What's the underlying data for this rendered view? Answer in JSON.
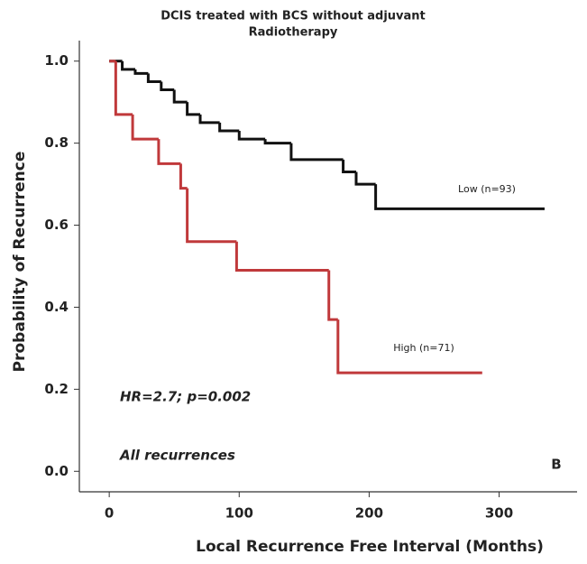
{
  "chart_data": {
    "type": "step",
    "title": [
      "DCIS treated with BCS without adjuvant",
      "Radiotherapy"
    ],
    "x_label": "Local Recurrence Free Interval (Months)",
    "y_label": "Probability of Recurrence",
    "xlim": [
      -23,
      360
    ],
    "xticks": [
      0,
      100,
      200,
      300
    ],
    "ylim": [
      -0.05,
      1.05
    ],
    "yticks": [
      {
        "value": 0,
        "label": "0.0"
      },
      0.2,
      0.4,
      0.6,
      0.8,
      {
        "value": 1,
        "label": "1.0"
      }
    ],
    "series": [
      {
        "name": "Low (n=93)",
        "color": "#111111",
        "x": [
          0,
          10,
          20,
          30,
          40,
          50,
          60,
          70,
          85,
          100,
          120,
          140,
          180,
          190,
          205,
          335
        ],
        "values": [
          1,
          0.98,
          0.97,
          0.95,
          0.93,
          0.9,
          0.87,
          0.85,
          0.83,
          0.81,
          0.8,
          0.76,
          0.73,
          0.7,
          0.64,
          0.64
        ]
      },
      {
        "name": "High (n=71)",
        "color": "#c0393b",
        "x": [
          0,
          5,
          18,
          38,
          55,
          60,
          98,
          169,
          176,
          287
        ],
        "values": [
          1,
          0.87,
          0.81,
          0.75,
          0.69,
          0.56,
          0.49,
          0.37,
          0.24,
          0.24
        ]
      }
    ],
    "annotations": [
      "HR=2.7; p=0.002",
      "All recurrences",
      "B"
    ]
  }
}
